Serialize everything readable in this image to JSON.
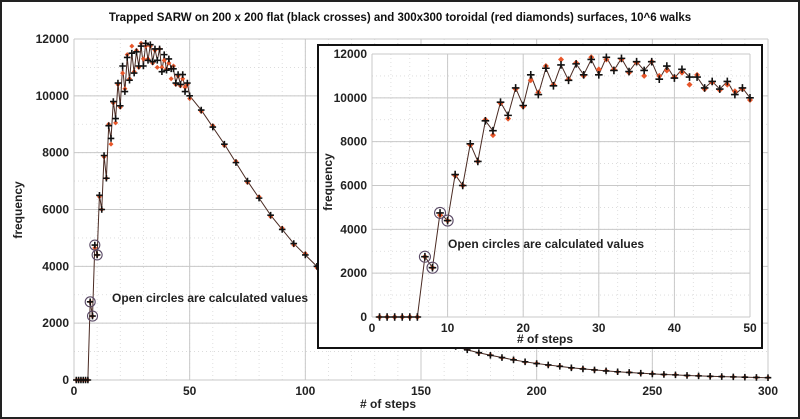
{
  "chart_data": [
    {
      "id": "main",
      "type": "scatter",
      "title": "Trapped SARW on 200 x 200 flat (black crosses) and 300x300 toroidal (red diamonds) surfaces, 10^6 walks",
      "xlabel": "# of steps",
      "ylabel": "frequency",
      "xlim": [
        0,
        300
      ],
      "ylim": [
        0,
        12000
      ],
      "xticks": [
        0,
        50,
        100,
        150,
        200,
        250,
        300
      ],
      "yticks": [
        0,
        2000,
        4000,
        6000,
        8000,
        10000,
        12000
      ],
      "annotation": "Open circles are calculated values",
      "grid": true,
      "tail_x": [
        55,
        60,
        65,
        70,
        75,
        80,
        85,
        90,
        95,
        100,
        105,
        110,
        115,
        120,
        125,
        130,
        135,
        140,
        145,
        150,
        155,
        160,
        165,
        170,
        175,
        180,
        185,
        190,
        195,
        200,
        205,
        210,
        215,
        220,
        225,
        230,
        235,
        240,
        245,
        250,
        255,
        260,
        265,
        270,
        275,
        280,
        285,
        290,
        295,
        300
      ],
      "tail_flat": [
        9500,
        8900,
        8300,
        7650,
        7000,
        6400,
        5800,
        5300,
        4800,
        4400,
        4000,
        3600,
        3250,
        2950,
        2650,
        2400,
        2150,
        1950,
        1750,
        1600,
        1450,
        1300,
        1180,
        1060,
        960,
        870,
        790,
        710,
        640,
        580,
        530,
        480,
        430,
        390,
        355,
        320,
        290,
        265,
        240,
        215,
        195,
        180,
        160,
        145,
        130,
        120,
        110,
        100,
        90,
        80
      ],
      "tail_toroidal": [
        9450,
        8950,
        8250,
        7700,
        6950,
        6450,
        5750,
        5350,
        4750,
        4450,
        3950,
        3650,
        3200,
        2980,
        2620,
        2430,
        2120,
        1970,
        1730,
        1620,
        1430,
        1320,
        1160,
        1080,
        950,
        880,
        780,
        720,
        630,
        590,
        520,
        490,
        420,
        400,
        350,
        330,
        285,
        270,
        235,
        220,
        190,
        185,
        155,
        150,
        128,
        122,
        108,
        102,
        88,
        82
      ]
    },
    {
      "id": "inset",
      "type": "line",
      "xlabel": "# of steps",
      "ylabel": "frequency",
      "xlim": [
        0,
        50
      ],
      "ylim": [
        0,
        12000
      ],
      "xticks": [
        0,
        10,
        20,
        30,
        40,
        50
      ],
      "yticks": [
        0,
        2000,
        4000,
        6000,
        8000,
        10000,
        12000
      ],
      "annotation": "Open circles are calculated values",
      "grid": true,
      "x": [
        1,
        2,
        3,
        4,
        5,
        6,
        7,
        8,
        9,
        10,
        11,
        12,
        13,
        14,
        15,
        16,
        17,
        18,
        19,
        20,
        21,
        22,
        23,
        24,
        25,
        26,
        27,
        28,
        29,
        30,
        31,
        32,
        33,
        34,
        35,
        36,
        37,
        38,
        39,
        40,
        41,
        42,
        43,
        44,
        45,
        46,
        47,
        48,
        49,
        50
      ],
      "series": [
        {
          "name": "200 x 200 flat (black crosses)",
          "color": "#111111",
          "marker": "cross",
          "values": [
            0,
            0,
            0,
            0,
            0,
            0,
            2750,
            2250,
            4750,
            4400,
            6500,
            6000,
            7900,
            7100,
            8950,
            8500,
            9800,
            9200,
            10450,
            9650,
            11050,
            10150,
            11350,
            10550,
            11500,
            10800,
            11550,
            11050,
            11750,
            11050,
            11850,
            11250,
            11800,
            11200,
            11650,
            11250,
            11650,
            10850,
            11450,
            10900,
            11300,
            10950,
            10950,
            10450,
            10750,
            10400,
            10750,
            10150,
            10450,
            10000
          ]
        },
        {
          "name": "300x300 toroidal (red diamonds)",
          "color": "#e8562a",
          "marker": "diamond",
          "values": [
            0,
            0,
            0,
            0,
            0,
            0,
            2750,
            2250,
            4650,
            4400,
            6450,
            6000,
            7850,
            7100,
            9000,
            8300,
            9750,
            9050,
            10400,
            9600,
            10800,
            10250,
            11450,
            10600,
            11750,
            10850,
            11600,
            11000,
            11850,
            11300,
            11750,
            11300,
            11750,
            11150,
            11600,
            11000,
            11650,
            11000,
            11250,
            10950,
            11150,
            10600,
            11050,
            10400,
            10700,
            10350,
            10600,
            10300,
            10400,
            9900
          ]
        }
      ],
      "calculated_x": [
        7,
        8,
        9,
        10
      ]
    }
  ]
}
